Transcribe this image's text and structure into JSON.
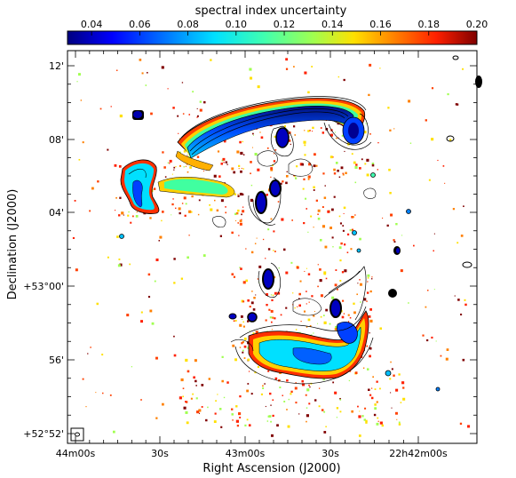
{
  "figure": {
    "colorbar": {
      "title": "spectral index uncertainty",
      "ticks": [
        "0.04",
        "0.06",
        "0.08",
        "0.10",
        "0.12",
        "0.14",
        "0.16",
        "0.18",
        "0.20"
      ],
      "range": [
        0.03,
        0.2
      ],
      "colormap": "jet",
      "colors": [
        "#000080",
        "#0000ff",
        "#0080ff",
        "#00e0ff",
        "#40ffb0",
        "#a0ff50",
        "#ffe000",
        "#ff8000",
        "#ff2000",
        "#800000"
      ]
    },
    "x_axis": {
      "title": "Right Ascension (J2000)",
      "ticks": [
        "44m00s",
        "30s",
        "43m00s",
        "30s",
        "22h42m00s"
      ]
    },
    "y_axis": {
      "title": "Declination (J2000)",
      "ticks": [
        "12'",
        "08'",
        "04'",
        "+53°00'",
        "56'",
        "+52°52'"
      ]
    }
  }
}
